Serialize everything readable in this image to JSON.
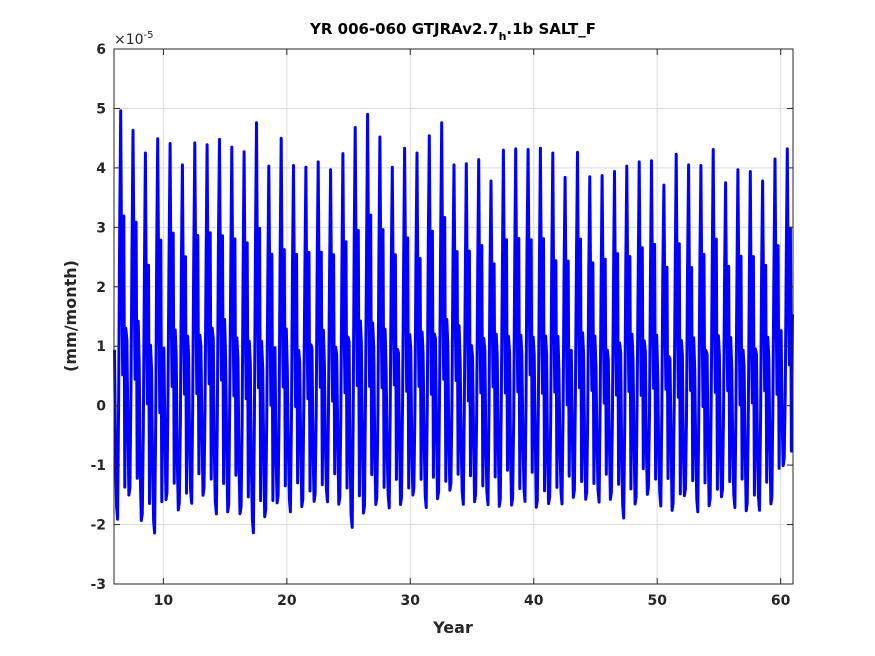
{
  "chart_data": {
    "type": "line",
    "title_main": "YR 006-060 GTJRAv2.7",
    "title_sub": "h",
    "title_end": ".1b SALT_F",
    "xlabel": "Year",
    "ylabel": "(mm/month)",
    "xlim": [
      6,
      61
    ],
    "ylim": [
      -3,
      6
    ],
    "xticks": [
      10,
      20,
      30,
      40,
      50,
      60
    ],
    "yticks": [
      -3,
      -2,
      -1,
      0,
      1,
      2,
      3,
      4,
      5,
      6
    ],
    "y_multiplier_base": "×10",
    "y_multiplier_exp": "-5",
    "grid": true,
    "series": [
      {
        "color": "#0000ff",
        "x_start": 6.042,
        "x_step": 0.08333,
        "annual_peaks": [
          5.05,
          4.6,
          4.1,
          4.55,
          4.35,
          4.2,
          4.45,
          4.3,
          4.6,
          4.35,
          4.15,
          4.85,
          4.0,
          4.35,
          4.1,
          3.95,
          4.25,
          4.0,
          4.15,
          4.8,
          4.9,
          4.4,
          4.1,
          4.3,
          4.1,
          4.6,
          4.7,
          4.2,
          4.1,
          4.05,
          3.9,
          4.3,
          4.2,
          4.4,
          4.3,
          4.1,
          3.9,
          4.2,
          4.0,
          3.9,
          3.85,
          4.15,
          4.1,
          4.0,
          3.8,
          4.2,
          3.9,
          4.1,
          4.25,
          3.9,
          4.0,
          3.85,
          3.9,
          4.15,
          4.2
        ],
        "annual_troughs": [
          -2.15,
          -1.7,
          -2.25,
          -2.4,
          -1.8,
          -2.1,
          -1.9,
          -1.75,
          -2.0,
          -1.95,
          -2.1,
          -2.38,
          -2.05,
          -1.95,
          -2.0,
          -1.9,
          -1.95,
          -1.85,
          -1.9,
          -2.25,
          -2.0,
          -1.95,
          -1.9,
          -1.85,
          -1.8,
          -1.95,
          -1.8,
          -1.75,
          -1.9,
          -1.85,
          -1.8,
          -1.85,
          -1.95,
          -1.8,
          -1.9,
          -1.95,
          -1.85,
          -1.75,
          -1.9,
          -1.85,
          -1.8,
          -2.05,
          -1.8,
          -1.75,
          -1.85,
          -1.95,
          -1.8,
          -2.0,
          -1.9,
          -1.85,
          -1.95,
          -2.0,
          -1.9,
          -1.8,
          -1.25
        ]
      }
    ]
  }
}
